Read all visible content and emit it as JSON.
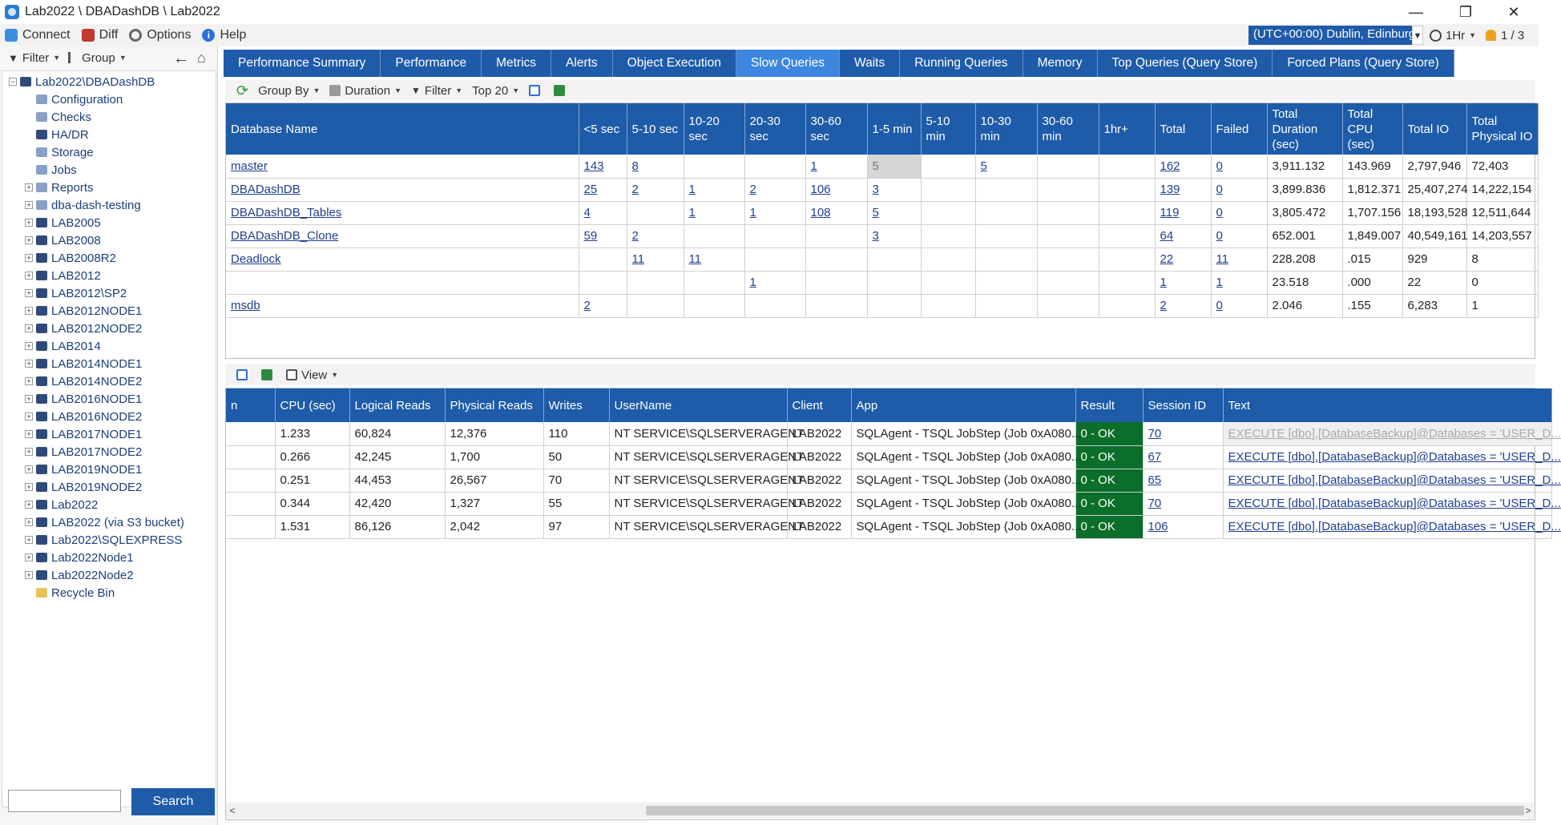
{
  "window": {
    "title": "Lab2022 \\ DBADashDB \\ Lab2022",
    "minimize": "—",
    "restore": "❐",
    "close": "✕"
  },
  "menu": {
    "connect": "Connect",
    "diff": "Diff",
    "options": "Options",
    "help": "Help",
    "help_glyph": "i",
    "timezone": "(UTC+00:00) Dublin, Edinburg",
    "timerange": "1Hr",
    "pager": "1 / 3"
  },
  "left": {
    "filter_label": "Filter",
    "group_label": "Group",
    "tree": [
      {
        "label": "Lab2022\\DBADashDB",
        "level": 0,
        "exp": "−",
        "icon": "server"
      },
      {
        "label": "Configuration",
        "level": 1,
        "exp": "",
        "icon": "light"
      },
      {
        "label": "Checks",
        "level": 1,
        "exp": "",
        "icon": "light"
      },
      {
        "label": "HA/DR",
        "level": 1,
        "exp": "",
        "icon": "server"
      },
      {
        "label": "Storage",
        "level": 1,
        "exp": "",
        "icon": "light"
      },
      {
        "label": "Jobs",
        "level": 1,
        "exp": "",
        "icon": "light"
      },
      {
        "label": "Reports",
        "level": 1,
        "exp": "+",
        "icon": "light"
      },
      {
        "label": "dba-dash-testing",
        "level": 1,
        "exp": "+",
        "icon": "light"
      },
      {
        "label": "LAB2005",
        "level": 1,
        "exp": "+",
        "icon": "server"
      },
      {
        "label": "LAB2008",
        "level": 1,
        "exp": "+",
        "icon": "server"
      },
      {
        "label": "LAB2008R2",
        "level": 1,
        "exp": "+",
        "icon": "server"
      },
      {
        "label": "LAB2012",
        "level": 1,
        "exp": "+",
        "icon": "server"
      },
      {
        "label": "LAB2012\\SP2",
        "level": 1,
        "exp": "+",
        "icon": "server"
      },
      {
        "label": "LAB2012NODE1",
        "level": 1,
        "exp": "+",
        "icon": "server"
      },
      {
        "label": "LAB2012NODE2",
        "level": 1,
        "exp": "+",
        "icon": "server"
      },
      {
        "label": "LAB2014",
        "level": 1,
        "exp": "+",
        "icon": "server"
      },
      {
        "label": "LAB2014NODE1",
        "level": 1,
        "exp": "+",
        "icon": "server"
      },
      {
        "label": "LAB2014NODE2",
        "level": 1,
        "exp": "+",
        "icon": "server"
      },
      {
        "label": "LAB2016NODE1",
        "level": 1,
        "exp": "+",
        "icon": "server"
      },
      {
        "label": "LAB2016NODE2",
        "level": 1,
        "exp": "+",
        "icon": "server"
      },
      {
        "label": "LAB2017NODE1",
        "level": 1,
        "exp": "+",
        "icon": "server"
      },
      {
        "label": "LAB2017NODE2",
        "level": 1,
        "exp": "+",
        "icon": "server"
      },
      {
        "label": "LAB2019NODE1",
        "level": 1,
        "exp": "+",
        "icon": "server"
      },
      {
        "label": "LAB2019NODE2",
        "level": 1,
        "exp": "+",
        "icon": "server"
      },
      {
        "label": "Lab2022",
        "level": 1,
        "exp": "+",
        "icon": "server"
      },
      {
        "label": "LAB2022 (via S3 bucket)",
        "level": 1,
        "exp": "+",
        "icon": "server"
      },
      {
        "label": "Lab2022\\SQLEXPRESS",
        "level": 1,
        "exp": "+",
        "icon": "server"
      },
      {
        "label": "Lab2022Node1",
        "level": 1,
        "exp": "+",
        "icon": "server"
      },
      {
        "label": "Lab2022Node2",
        "level": 1,
        "exp": "+",
        "icon": "server"
      },
      {
        "label": "Recycle Bin",
        "level": 1,
        "exp": "",
        "icon": "folder"
      }
    ],
    "search_value": "",
    "search_button": "Search"
  },
  "tabs": [
    {
      "label": "Performance Summary",
      "active": false
    },
    {
      "label": "Performance",
      "active": false
    },
    {
      "label": "Metrics",
      "active": false
    },
    {
      "label": "Alerts",
      "active": false
    },
    {
      "label": "Object Execution",
      "active": false
    },
    {
      "label": "Slow Queries",
      "active": true
    },
    {
      "label": "Waits",
      "active": false
    },
    {
      "label": "Running Queries",
      "active": false
    },
    {
      "label": "Memory",
      "active": false
    },
    {
      "label": "Top Queries (Query Store)",
      "active": false
    },
    {
      "label": "Forced Plans (Query Store)",
      "active": false
    }
  ],
  "toolbar1": {
    "group_by": "Group By",
    "duration": "Duration",
    "filter": "Filter",
    "top": "Top 20"
  },
  "summary": {
    "columns": [
      "Database Name",
      "<5 sec",
      "5-10 sec",
      "10-20 sec",
      "20-30 sec",
      "30-60 sec",
      "1-5 min",
      "5-10 min",
      "10-30 min",
      "30-60 min",
      "1hr+",
      "Total",
      "Failed",
      "Total Duration (sec)",
      "Total CPU (sec)",
      "Total IO",
      "Total Physical IO"
    ],
    "rows": [
      [
        "master",
        "143",
        "8",
        "",
        "",
        "1",
        "5",
        "",
        "5",
        "",
        "",
        "162",
        "0",
        "3,911.132",
        "143.969",
        "2,797,946",
        "72,403"
      ],
      [
        "DBADashDB",
        "25",
        "2",
        "1",
        "2",
        "106",
        "3",
        "",
        "",
        "",
        "",
        "139",
        "0",
        "3,899.836",
        "1,812.371",
        "25,407,274",
        "14,222,154"
      ],
      [
        "DBADashDB_Tables",
        "4",
        "",
        "1",
        "1",
        "108",
        "5",
        "",
        "",
        "",
        "",
        "119",
        "0",
        "3,805.472",
        "1,707.156",
        "18,193,528",
        "12,511,644"
      ],
      [
        "DBADashDB_Clone",
        "59",
        "2",
        "",
        "",
        "",
        "3",
        "",
        "",
        "",
        "",
        "64",
        "0",
        "652.001",
        "1,849.007",
        "40,549,161",
        "14,203,557"
      ],
      [
        "Deadlock",
        "",
        "11",
        "11",
        "",
        "",
        "",
        "",
        "",
        "",
        "",
        "22",
        "11",
        "228.208",
        ".015",
        "929",
        "8"
      ],
      [
        "",
        "",
        "",
        "",
        "1",
        "",
        "",
        "",
        "",
        "",
        "",
        "1",
        "1",
        "23.518",
        ".000",
        "22",
        "0"
      ],
      [
        "msdb",
        "2",
        "",
        "",
        "",
        "",
        "",
        "",
        "",
        "",
        "",
        "2",
        "0",
        "2.046",
        ".155",
        "6,283",
        "1"
      ]
    ]
  },
  "toolbar2": {
    "view": "View"
  },
  "detail": {
    "columns": [
      "n",
      "CPU (sec)",
      "Logical Reads",
      "Physical Reads",
      "Writes",
      "UserName",
      "Client",
      "App",
      "Result",
      "Session ID",
      "Text"
    ],
    "rows": [
      [
        "",
        "1.233",
        "60,824",
        "12,376",
        "110",
        "NT SERVICE\\SQLSERVERAGENT",
        "LAB2022",
        "SQLAgent - TSQL JobStep (Job 0xA080...",
        "0 - OK",
        "70",
        "EXECUTE [dbo].[DatabaseBackup]@Databases = 'USER_D..."
      ],
      [
        "",
        "0.266",
        "42,245",
        "1,700",
        "50",
        "NT SERVICE\\SQLSERVERAGENT",
        "LAB2022",
        "SQLAgent - TSQL JobStep (Job 0xA080...",
        "0 - OK",
        "67",
        "EXECUTE [dbo].[DatabaseBackup]@Databases = 'USER_D..."
      ],
      [
        "",
        "0.251",
        "44,453",
        "26,567",
        "70",
        "NT SERVICE\\SQLSERVERAGENT",
        "LAB2022",
        "SQLAgent - TSQL JobStep (Job 0xA080...",
        "0 - OK",
        "65",
        "EXECUTE [dbo].[DatabaseBackup]@Databases = 'USER_D..."
      ],
      [
        "",
        "0.344",
        "42,420",
        "1,327",
        "55",
        "NT SERVICE\\SQLSERVERAGENT",
        "LAB2022",
        "SQLAgent - TSQL JobStep (Job 0xA080...",
        "0 - OK",
        "70",
        "EXECUTE [dbo].[DatabaseBackup]@Databases = 'USER_D..."
      ],
      [
        "",
        "1.531",
        "86,126",
        "2,042",
        "97",
        "NT SERVICE\\SQLSERVERAGENT",
        "LAB2022",
        "SQLAgent - TSQL JobStep (Job 0xA080...",
        "0 - OK",
        "106",
        "EXECUTE [dbo].[DatabaseBackup]@Databases = 'USER_D..."
      ]
    ]
  },
  "colors": {
    "header_blue": "#1e5ba9",
    "active_tab": "#3d86e0",
    "ok_green": "#0b6e2a"
  }
}
